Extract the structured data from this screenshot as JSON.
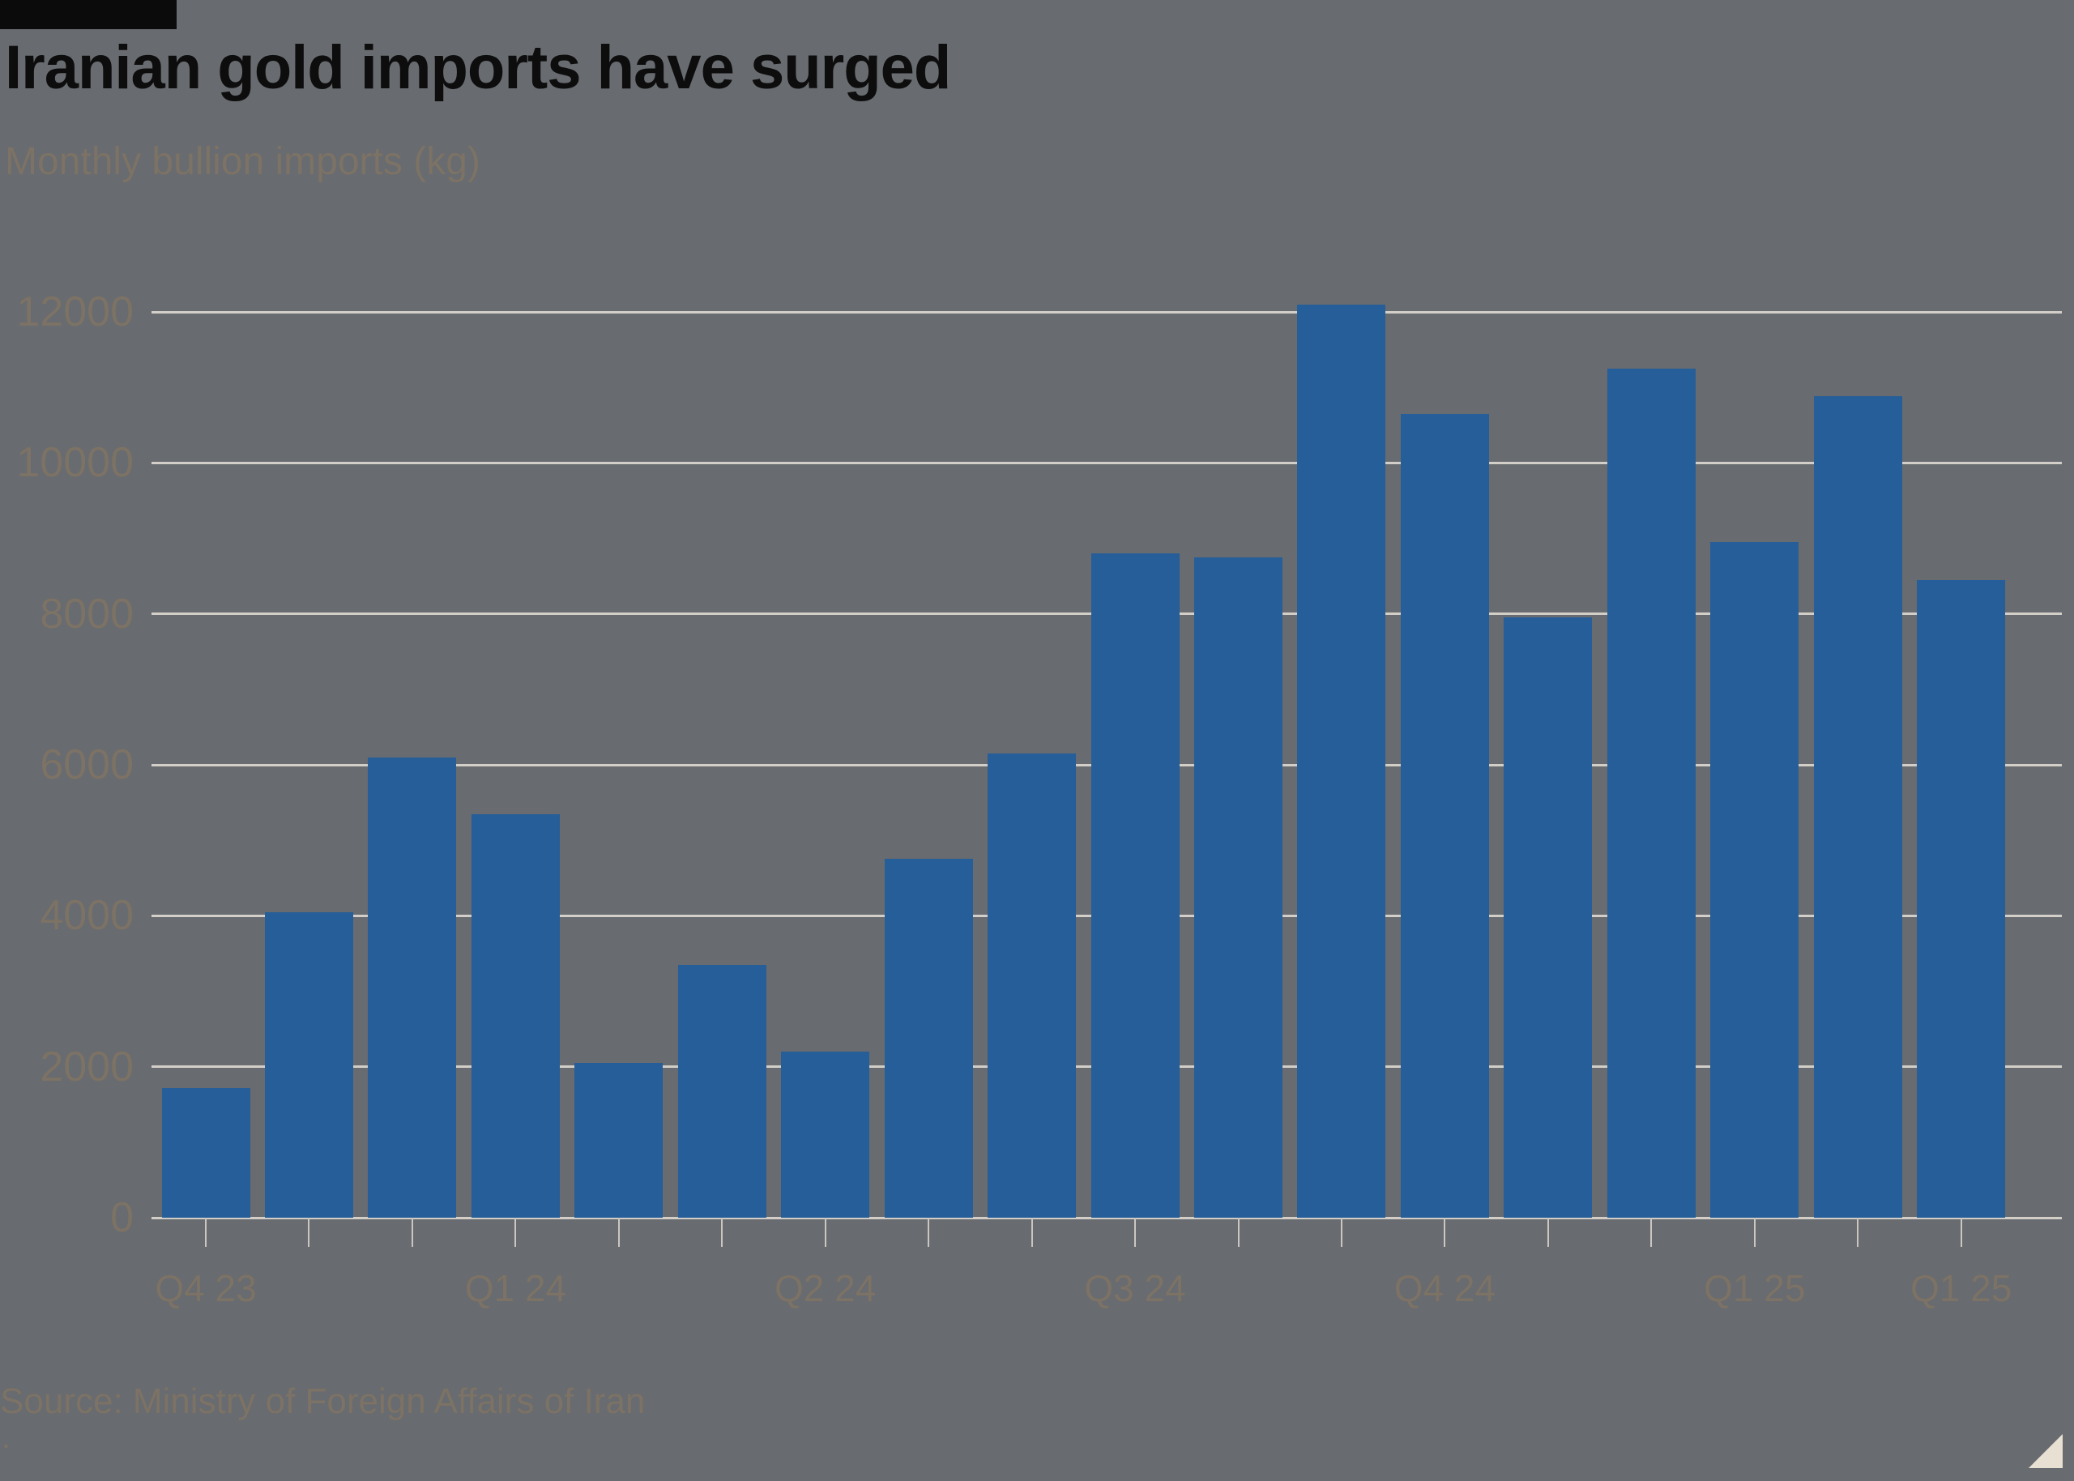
{
  "title": "Iranian gold imports have surged",
  "subtitle": "Monthly bullion imports (kg)",
  "source": "Source: Ministry of Foreign Affairs of Iran",
  "footnote_dot": ".",
  "colors": {
    "background": "#686B6F",
    "bar": "#255E98",
    "gridline": "#D3CFC8",
    "title_text": "#0D0D0D",
    "muted_text": "#7C7265",
    "expand_triangle": "#E8E0D3"
  },
  "chart_data": {
    "type": "bar",
    "title": "Iranian gold imports have surged",
    "subtitle": "Monthly bullion imports (kg)",
    "ylabel": "Monthly bullion imports (kg)",
    "xlabel": "",
    "ylim": [
      0,
      12400
    ],
    "grid": "horizontal",
    "legend": "none",
    "y_ticks": [
      0,
      2000,
      4000,
      6000,
      8000,
      10000,
      12000
    ],
    "x_tick_labels": [
      {
        "label": "Q4 23",
        "bar_index": 0
      },
      {
        "label": "Q1 24",
        "bar_index": 3
      },
      {
        "label": "Q2 24",
        "bar_index": 6
      },
      {
        "label": "Q3 24",
        "bar_index": 9
      },
      {
        "label": "Q4 24",
        "bar_index": 12
      },
      {
        "label": "Q1 25",
        "bar_index": 15
      },
      {
        "label": "Q1 25",
        "bar_index": 17
      }
    ],
    "values": [
      1720,
      4050,
      6100,
      5350,
      2050,
      3350,
      2200,
      4750,
      6150,
      8800,
      8750,
      12100,
      10650,
      7950,
      11250,
      8950,
      10880,
      8450
    ],
    "source": "Source: Ministry of Foreign Affairs of Iran"
  }
}
